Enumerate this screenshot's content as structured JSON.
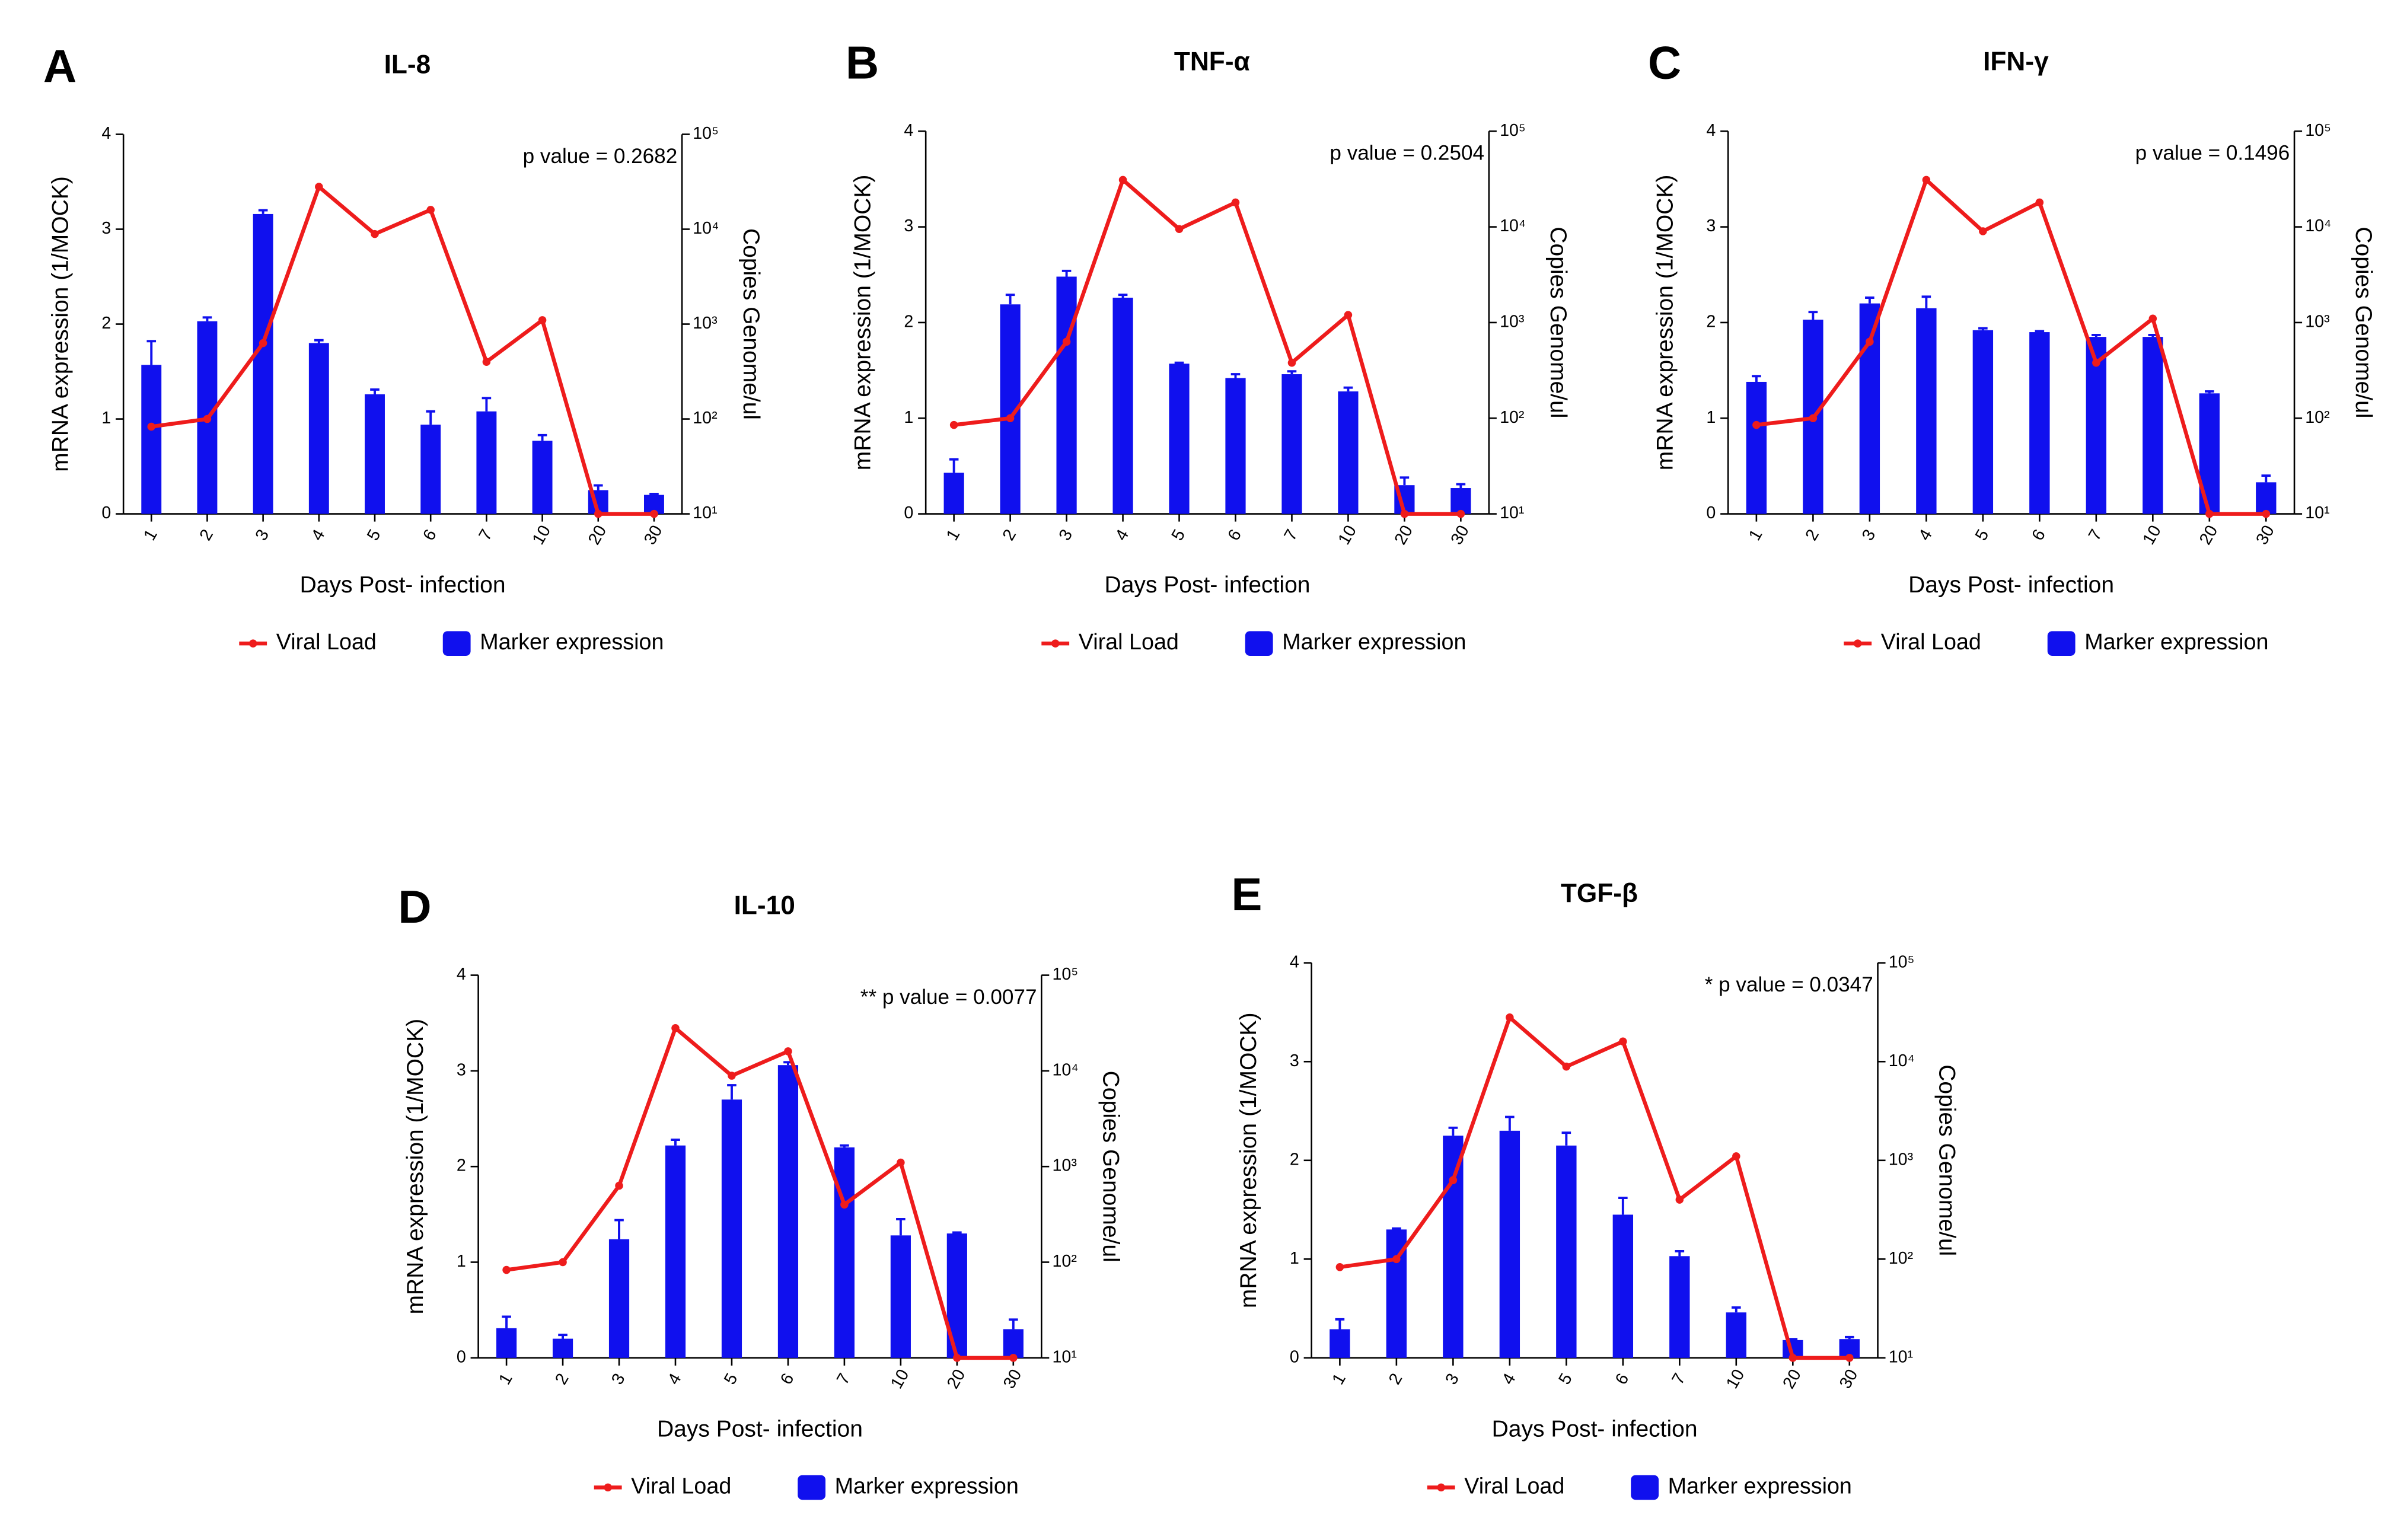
{
  "chart_data": [
    {
      "type": "combo",
      "label": "A",
      "title": "IL-8",
      "annotation": "p value = 0.2682",
      "x_label": "Days Post- infection",
      "y_label": "mRNA expression (1/MOCK)",
      "y2_label": "Copies Genome/ul",
      "categories": [
        "1",
        "2",
        "3",
        "4",
        "5",
        "6",
        "7",
        "10",
        "20",
        "30"
      ],
      "ylim": [
        0,
        4
      ],
      "yticks": [
        0,
        1,
        2,
        3,
        4
      ],
      "y2lim": [
        10,
        100000
      ],
      "y2log": true,
      "y2ticks": [
        {
          "value": 10,
          "label": "10¹"
        },
        {
          "value": 100,
          "label": "10²"
        },
        {
          "value": 1000,
          "label": "10³"
        },
        {
          "value": 10000,
          "label": "10⁴"
        },
        {
          "value": 100000,
          "label": "10⁵"
        }
      ],
      "series": [
        {
          "name": "Viral Load",
          "type": "line",
          "axis": "y2",
          "color": "#ee1c1c",
          "values": [
            83,
            100,
            630,
            28000,
            8900,
            16000,
            400,
            1100,
            10,
            10
          ]
        },
        {
          "name": "Marker expression",
          "type": "bar",
          "color": "#1010ee",
          "values": [
            1.57,
            2.03,
            3.16,
            1.8,
            1.26,
            0.94,
            1.08,
            0.77,
            0.25,
            0.2
          ],
          "errors": [
            0.25,
            0.04,
            0.04,
            0.03,
            0.05,
            0.14,
            0.14,
            0.06,
            0.05,
            0.01
          ]
        }
      ]
    },
    {
      "type": "combo",
      "label": "B",
      "title": "TNF-α",
      "annotation": "p value = 0.2504",
      "x_label": "Days Post- infection",
      "y_label": "mRNA expression (1/MOCK)",
      "y2_label": "Copies Genome/ul",
      "categories": [
        "1",
        "2",
        "3",
        "4",
        "5",
        "6",
        "7",
        "10",
        "20",
        "30"
      ],
      "ylim": [
        0,
        4
      ],
      "yticks": [
        0,
        1,
        2,
        3,
        4
      ],
      "y2lim": [
        10,
        100000
      ],
      "y2log": true,
      "y2ticks": [
        {
          "value": 10,
          "label": "10¹"
        },
        {
          "value": 100,
          "label": "10²"
        },
        {
          "value": 1000,
          "label": "10³"
        },
        {
          "value": 10000,
          "label": "10⁴"
        },
        {
          "value": 100000,
          "label": "10⁵"
        }
      ],
      "series": [
        {
          "name": "Viral Load",
          "type": "line",
          "axis": "y2",
          "color": "#ee1c1c",
          "values": [
            85,
            100,
            630,
            31000,
            9500,
            18000,
            380,
            1200,
            10,
            10
          ]
        },
        {
          "name": "Marker expression",
          "type": "bar",
          "color": "#1010ee",
          "values": [
            0.43,
            2.19,
            2.48,
            2.26,
            1.57,
            1.42,
            1.46,
            1.28,
            0.3,
            0.27
          ],
          "errors": [
            0.14,
            0.1,
            0.06,
            0.03,
            0.01,
            0.04,
            0.03,
            0.04,
            0.08,
            0.04
          ]
        }
      ]
    },
    {
      "type": "combo",
      "label": "C",
      "title": "IFN-γ",
      "annotation": "p value = 0.1496",
      "x_label": "Days Post- infection",
      "y_label": "mRNA expression (1/MOCK)",
      "y2_label": "Copies Genome/ul",
      "categories": [
        "1",
        "2",
        "3",
        "4",
        "5",
        "6",
        "7",
        "10",
        "20",
        "30"
      ],
      "ylim": [
        0,
        4
      ],
      "yticks": [
        0,
        1,
        2,
        3,
        4
      ],
      "y2lim": [
        10,
        100000
      ],
      "y2log": true,
      "y2ticks": [
        {
          "value": 10,
          "label": "10¹"
        },
        {
          "value": 100,
          "label": "10²"
        },
        {
          "value": 1000,
          "label": "10³"
        },
        {
          "value": 10000,
          "label": "10⁴"
        },
        {
          "value": 100000,
          "label": "10⁵"
        }
      ],
      "series": [
        {
          "name": "Viral Load",
          "type": "line",
          "axis": "y2",
          "color": "#ee1c1c",
          "values": [
            85,
            100,
            630,
            31000,
            9000,
            18000,
            380,
            1100,
            10,
            10
          ]
        },
        {
          "name": "Marker expression",
          "type": "bar",
          "color": "#1010ee",
          "values": [
            1.38,
            2.03,
            2.2,
            2.15,
            1.92,
            1.9,
            1.85,
            1.85,
            1.26,
            0.33
          ],
          "errors": [
            0.06,
            0.08,
            0.06,
            0.12,
            0.02,
            0.01,
            0.02,
            0.02,
            0.02,
            0.07
          ]
        }
      ]
    },
    {
      "type": "combo",
      "label": "D",
      "title": "IL-10",
      "annotation": "** p value = 0.0077",
      "x_label": "Days Post- infection",
      "y_label": "mRNA expression (1/MOCK)",
      "y2_label": "Copies Genome/ul",
      "categories": [
        "1",
        "2",
        "3",
        "4",
        "5",
        "6",
        "7",
        "10",
        "20",
        "30"
      ],
      "ylim": [
        0,
        4
      ],
      "yticks": [
        0,
        1,
        2,
        3,
        4
      ],
      "y2lim": [
        10,
        100000
      ],
      "y2log": true,
      "y2ticks": [
        {
          "value": 10,
          "label": "10¹"
        },
        {
          "value": 100,
          "label": "10²"
        },
        {
          "value": 1000,
          "label": "10³"
        },
        {
          "value": 10000,
          "label": "10⁴"
        },
        {
          "value": 100000,
          "label": "10⁵"
        }
      ],
      "series": [
        {
          "name": "Viral Load",
          "type": "line",
          "axis": "y2",
          "color": "#ee1c1c",
          "values": [
            83,
            100,
            630,
            28000,
            8900,
            16000,
            400,
            1100,
            10,
            10
          ]
        },
        {
          "name": "Marker expression",
          "type": "bar",
          "color": "#1010ee",
          "values": [
            0.31,
            0.2,
            1.24,
            2.22,
            2.7,
            3.06,
            2.2,
            1.28,
            1.3,
            0.3
          ],
          "errors": [
            0.12,
            0.04,
            0.2,
            0.06,
            0.15,
            0.03,
            0.02,
            0.17,
            0.01,
            0.1
          ]
        }
      ]
    },
    {
      "type": "combo",
      "label": "E",
      "title": "TGF-β",
      "annotation": "* p value = 0.0347",
      "x_label": "Days Post- infection",
      "y_label": "mRNA expression (1/MOCK)",
      "y2_label": "Copies Genome/ul",
      "categories": [
        "1",
        "2",
        "3",
        "4",
        "5",
        "6",
        "7",
        "10",
        "20",
        "30"
      ],
      "ylim": [
        0,
        4
      ],
      "yticks": [
        0,
        1,
        2,
        3,
        4
      ],
      "y2lim": [
        10,
        100000
      ],
      "y2log": true,
      "y2ticks": [
        {
          "value": 10,
          "label": "10¹"
        },
        {
          "value": 100,
          "label": "10²"
        },
        {
          "value": 1000,
          "label": "10³"
        },
        {
          "value": 10000,
          "label": "10⁴"
        },
        {
          "value": 100000,
          "label": "10⁵"
        }
      ],
      "series": [
        {
          "name": "Viral Load",
          "type": "line",
          "axis": "y2",
          "color": "#ee1c1c",
          "values": [
            83,
            100,
            630,
            28000,
            8900,
            16000,
            400,
            1100,
            10,
            10
          ]
        },
        {
          "name": "Marker expression",
          "type": "bar",
          "color": "#1010ee",
          "values": [
            0.29,
            1.3,
            2.25,
            2.3,
            2.15,
            1.45,
            1.03,
            0.46,
            0.18,
            0.19
          ],
          "errors": [
            0.1,
            0.01,
            0.08,
            0.14,
            0.13,
            0.17,
            0.05,
            0.05,
            0.01,
            0.02
          ]
        }
      ]
    }
  ]
}
